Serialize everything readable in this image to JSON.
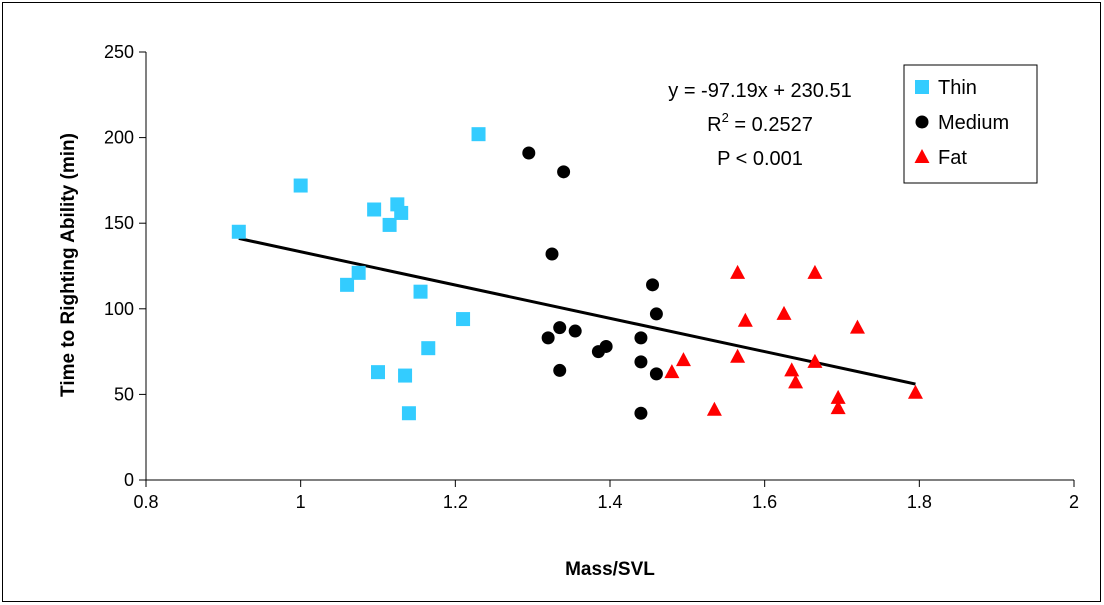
{
  "chart_data": {
    "type": "scatter",
    "title": "",
    "xlabel": "Mass/SVL",
    "ylabel": "Time to Righting Ability (min)",
    "xlim": [
      0.8,
      2
    ],
    "ylim": [
      0,
      250
    ],
    "xticks": [
      "0.8",
      "1",
      "1.2",
      "1.4",
      "1.6",
      "1.8",
      "2"
    ],
    "yticks": [
      "0",
      "50",
      "100",
      "150",
      "200",
      "250"
    ],
    "grid": false,
    "legend_position": "top-right",
    "series": [
      {
        "name": "Thin",
        "marker": "square",
        "color": "#33CCFF",
        "points": [
          [
            0.92,
            145
          ],
          [
            1.0,
            172
          ],
          [
            1.06,
            114
          ],
          [
            1.075,
            121
          ],
          [
            1.095,
            158
          ],
          [
            1.1,
            63
          ],
          [
            1.115,
            149
          ],
          [
            1.125,
            161
          ],
          [
            1.13,
            156
          ],
          [
            1.135,
            61
          ],
          [
            1.14,
            39
          ],
          [
            1.155,
            110
          ],
          [
            1.165,
            77
          ],
          [
            1.21,
            94
          ],
          [
            1.23,
            202
          ]
        ]
      },
      {
        "name": "Medium",
        "marker": "circle",
        "color": "#000000",
        "points": [
          [
            1.295,
            191
          ],
          [
            1.32,
            83
          ],
          [
            1.325,
            132
          ],
          [
            1.335,
            89
          ],
          [
            1.335,
            64
          ],
          [
            1.34,
            180
          ],
          [
            1.355,
            87
          ],
          [
            1.385,
            75
          ],
          [
            1.395,
            78
          ],
          [
            1.44,
            83
          ],
          [
            1.44,
            69
          ],
          [
            1.44,
            39
          ],
          [
            1.455,
            114
          ],
          [
            1.46,
            97
          ],
          [
            1.46,
            62
          ]
        ]
      },
      {
        "name": "Fat",
        "marker": "triangle",
        "color": "#FF0000",
        "points": [
          [
            1.48,
            63
          ],
          [
            1.495,
            70
          ],
          [
            1.535,
            41
          ],
          [
            1.565,
            121
          ],
          [
            1.565,
            72
          ],
          [
            1.575,
            93
          ],
          [
            1.625,
            97
          ],
          [
            1.635,
            64
          ],
          [
            1.64,
            57
          ],
          [
            1.665,
            121
          ],
          [
            1.665,
            69
          ],
          [
            1.695,
            48
          ],
          [
            1.695,
            42
          ],
          [
            1.72,
            89
          ],
          [
            1.795,
            51
          ]
        ]
      }
    ],
    "trendline": {
      "slope": -97.19,
      "intercept": 230.51,
      "x_range": [
        0.92,
        1.795
      ],
      "color": "#000000"
    },
    "annotations": {
      "equation": "y = -97.19x + 230.51",
      "r2_prefix": "R",
      "r2_sup": "2",
      "r2_value": " = 0.2527",
      "p_value": "P < 0.001"
    }
  }
}
